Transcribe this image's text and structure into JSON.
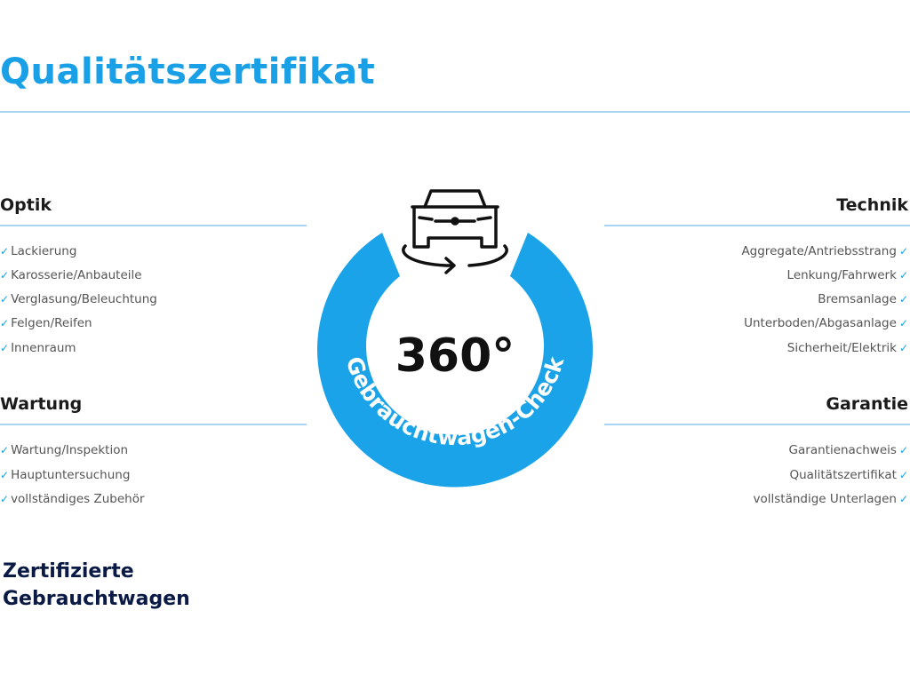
{
  "title": "Qualitätszertifikat",
  "sections": {
    "optik": {
      "heading": "Optik",
      "items": [
        "Lackierung",
        "Karosserie/Anbauteile",
        "Verglasung/Beleuchtung",
        "Felgen/Reifen",
        "Innenraum"
      ]
    },
    "wartung": {
      "heading": "Wartung",
      "items": [
        "Wartung/Inspektion",
        "Hauptuntersuchung",
        "vollständiges Zubehör"
      ]
    },
    "technik": {
      "heading": "Technik",
      "items": [
        "Aggregate/Antriebsstrang",
        "Lenkung/Fahrwerk",
        "Bremsanlage",
        "Unterboden/Abgasanlage",
        "Sicherheit/Elektrik"
      ]
    },
    "garantie": {
      "heading": "Garantie",
      "items": [
        "Garantienachweis",
        "Qualitätszertifikat",
        "vollständige Unterlagen"
      ]
    }
  },
  "badge": {
    "number": "360°",
    "ring_text": "Gebrauchtwagen-Check",
    "icon": "car-rotate-icon"
  },
  "bottom_title": {
    "line1": "Zertifizierte",
    "line2": "Gebrauchtwagen"
  },
  "check_icon": "✓",
  "colors": {
    "accent": "#1aa0e6",
    "rule": "#a8d6f2",
    "navy": "#0a1a45"
  }
}
